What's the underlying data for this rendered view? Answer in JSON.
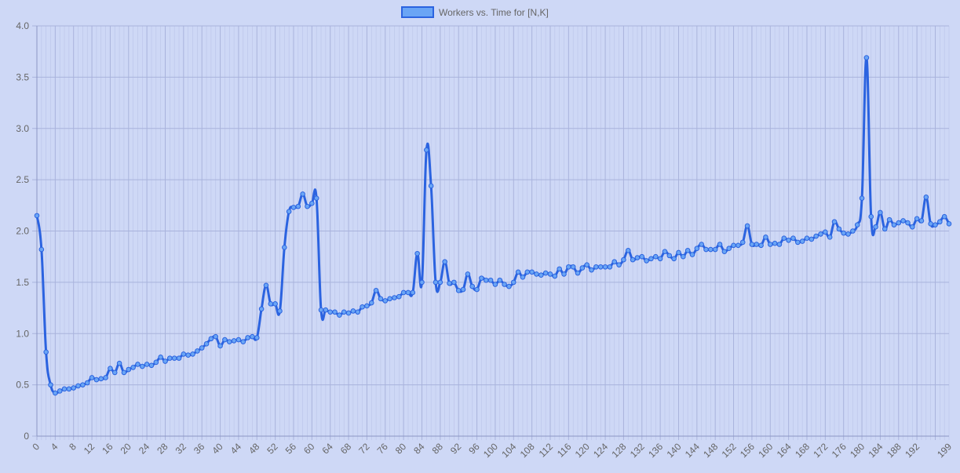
{
  "colors": {
    "background": "#ced8f6",
    "grid": "#a9b3dc",
    "axis": "#8c96c4",
    "line": "#2b63e0",
    "point_fill": "#6aa5f5",
    "point_stroke": "#2b63e0",
    "legend_fill": "#6aa5f5",
    "legend_stroke": "#2b63e0",
    "text": "#666666"
  },
  "chart_data": {
    "type": "line",
    "title": "",
    "xlabel": "",
    "ylabel": "",
    "legend": {
      "position": "top-center",
      "label": "Workers vs. Time for [N,K]"
    },
    "grid": true,
    "ylim": [
      0,
      4.0
    ],
    "y_ticks": [
      "0",
      "0.5",
      "1.0",
      "1.5",
      "2.0",
      "2.5",
      "3.0",
      "3.5",
      "4.0"
    ],
    "x_ticks": [
      "0",
      "4",
      "8",
      "12",
      "16",
      "20",
      "24",
      "28",
      "32",
      "36",
      "40",
      "44",
      "48",
      "52",
      "56",
      "60",
      "64",
      "68",
      "72",
      "76",
      "80",
      "84",
      "88",
      "92",
      "96",
      "100",
      "104",
      "108",
      "112",
      "116",
      "120",
      "124",
      "128",
      "132",
      "136",
      "140",
      "144",
      "148",
      "152",
      "156",
      "160",
      "164",
      "168",
      "172",
      "176",
      "180",
      "184",
      "188",
      "192",
      "199"
    ],
    "x": [
      0,
      1,
      2,
      3,
      4,
      5,
      6,
      7,
      8,
      9,
      10,
      11,
      12,
      13,
      14,
      15,
      16,
      17,
      18,
      19,
      20,
      21,
      22,
      23,
      24,
      25,
      26,
      27,
      28,
      29,
      30,
      31,
      32,
      33,
      34,
      35,
      36,
      37,
      38,
      39,
      40,
      41,
      42,
      43,
      44,
      45,
      46,
      47,
      48,
      49,
      50,
      51,
      52,
      53,
      54,
      55,
      56,
      57,
      58,
      59,
      60,
      61,
      62,
      63,
      64,
      65,
      66,
      67,
      68,
      69,
      70,
      71,
      72,
      73,
      74,
      75,
      76,
      77,
      78,
      79,
      80,
      81,
      82,
      83,
      84,
      85,
      86,
      87,
      88,
      89,
      90,
      91,
      92,
      93,
      94,
      95,
      96,
      97,
      98,
      99,
      100,
      101,
      102,
      103,
      104,
      105,
      106,
      107,
      108,
      109,
      110,
      111,
      112,
      113,
      114,
      115,
      116,
      117,
      118,
      119,
      120,
      121,
      122,
      123,
      124,
      125,
      126,
      127,
      128,
      129,
      130,
      131,
      132,
      133,
      134,
      135,
      136,
      137,
      138,
      139,
      140,
      141,
      142,
      143,
      144,
      145,
      146,
      147,
      148,
      149,
      150,
      151,
      152,
      153,
      154,
      155,
      156,
      157,
      158,
      159,
      160,
      161,
      162,
      163,
      164,
      165,
      166,
      167,
      168,
      169,
      170,
      171,
      172,
      173,
      174,
      175,
      176,
      177,
      178,
      179,
      180,
      181,
      182,
      183,
      184,
      185,
      186,
      187,
      188,
      189,
      190,
      191,
      192,
      193,
      194,
      195,
      196,
      197,
      198,
      199
    ],
    "series": [
      {
        "name": "Workers vs. Time for [N,K]",
        "values": [
          2.15,
          1.82,
          0.82,
          0.5,
          0.42,
          0.44,
          0.46,
          0.46,
          0.47,
          0.49,
          0.5,
          0.52,
          0.57,
          0.55,
          0.56,
          0.57,
          0.66,
          0.62,
          0.71,
          0.62,
          0.65,
          0.67,
          0.7,
          0.68,
          0.7,
          0.69,
          0.72,
          0.77,
          0.73,
          0.76,
          0.76,
          0.76,
          0.8,
          0.79,
          0.8,
          0.83,
          0.86,
          0.9,
          0.95,
          0.97,
          0.88,
          0.94,
          0.92,
          0.93,
          0.94,
          0.92,
          0.96,
          0.97,
          0.96,
          1.24,
          1.47,
          1.29,
          1.29,
          1.22,
          1.84,
          2.19,
          2.23,
          2.24,
          2.36,
          2.24,
          2.27,
          2.32,
          1.23,
          1.23,
          1.21,
          1.21,
          1.18,
          1.21,
          1.2,
          1.22,
          1.21,
          1.26,
          1.27,
          1.3,
          1.42,
          1.34,
          1.32,
          1.34,
          1.35,
          1.36,
          1.4,
          1.4,
          1.4,
          1.78,
          1.5,
          2.79,
          2.44,
          1.5,
          1.5,
          1.7,
          1.49,
          1.5,
          1.42,
          1.43,
          1.58,
          1.46,
          1.43,
          1.54,
          1.52,
          1.52,
          1.48,
          1.52,
          1.48,
          1.46,
          1.5,
          1.6,
          1.55,
          1.6,
          1.6,
          1.58,
          1.57,
          1.59,
          1.58,
          1.56,
          1.63,
          1.58,
          1.65,
          1.65,
          1.59,
          1.64,
          1.67,
          1.62,
          1.65,
          1.65,
          1.65,
          1.65,
          1.7,
          1.67,
          1.72,
          1.81,
          1.72,
          1.74,
          1.75,
          1.71,
          1.73,
          1.75,
          1.73,
          1.8,
          1.76,
          1.73,
          1.79,
          1.75,
          1.81,
          1.77,
          1.83,
          1.87,
          1.82,
          1.82,
          1.82,
          1.87,
          1.8,
          1.83,
          1.86,
          1.86,
          1.89,
          2.05,
          1.87,
          1.87,
          1.86,
          1.94,
          1.87,
          1.88,
          1.87,
          1.93,
          1.91,
          1.93,
          1.89,
          1.9,
          1.93,
          1.92,
          1.95,
          1.97,
          1.99,
          1.94,
          2.09,
          2.02,
          1.98,
          1.97,
          2.0,
          2.06,
          2.32,
          3.69,
          2.14,
          2.04,
          2.18,
          2.02,
          2.11,
          2.06,
          2.08,
          2.1,
          2.08,
          2.04,
          2.12,
          2.1,
          2.33,
          2.07,
          2.06,
          2.09,
          2.14,
          2.07
        ]
      }
    ]
  }
}
